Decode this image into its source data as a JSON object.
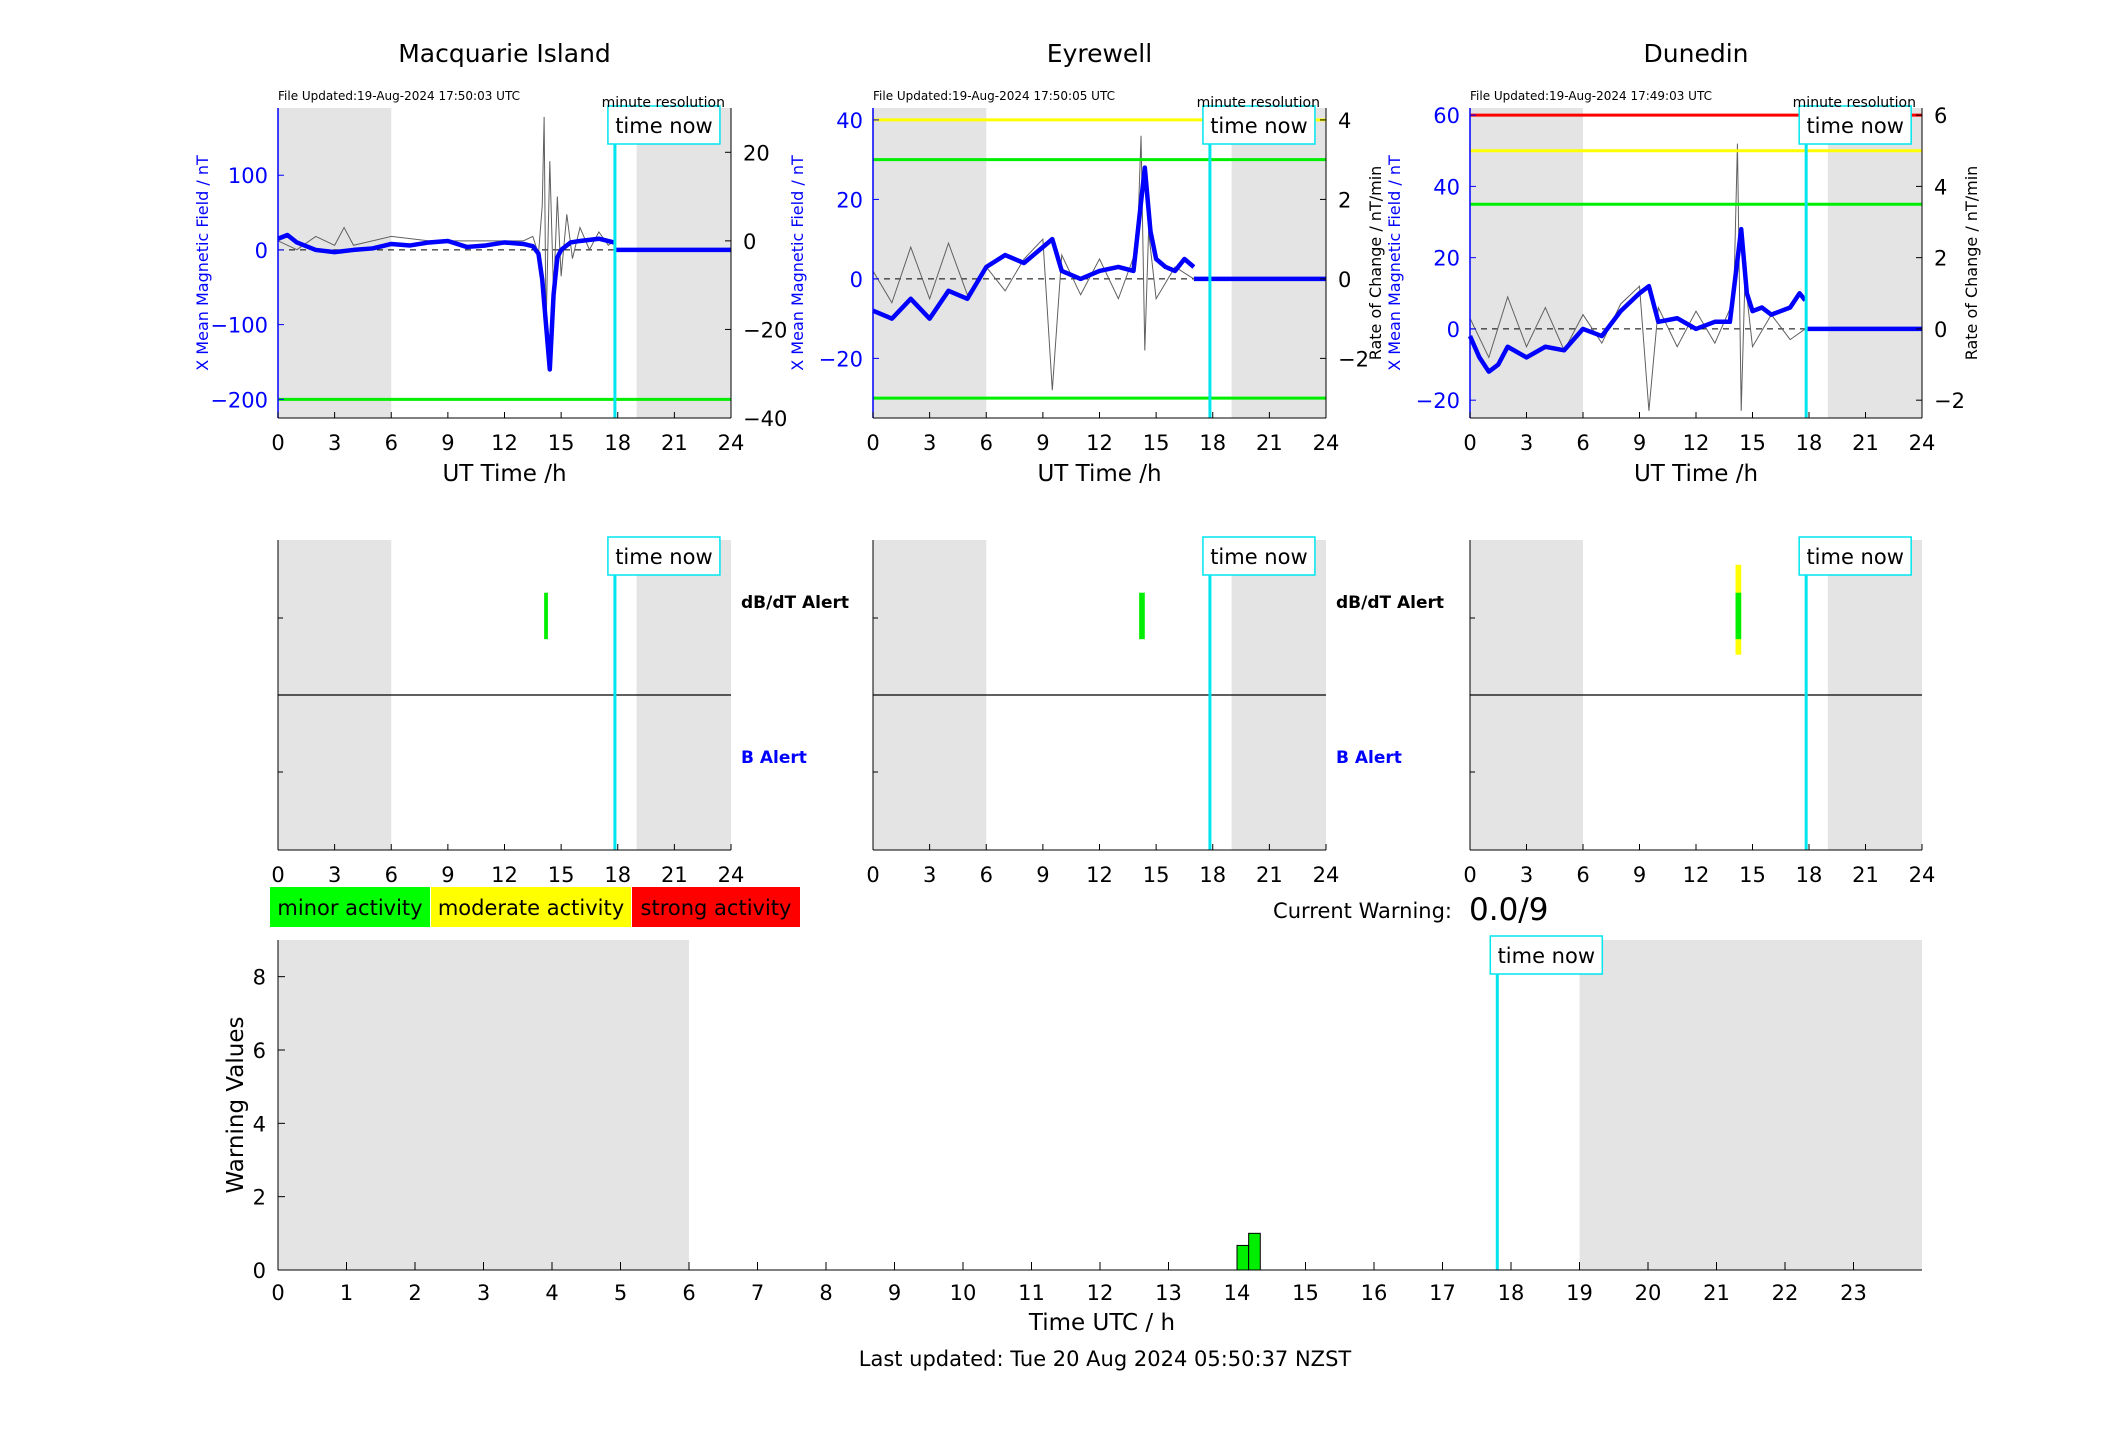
{
  "figure": {
    "last_updated": "Last updated: Tue 20 Aug 2024 05:50:37 NZST",
    "current_warning_label": "Current Warning:",
    "current_warning_value": "0.0/9"
  },
  "labels": {
    "time_now": "time now",
    "minute_resolution": "minute resolution",
    "ut_time": "UT Time /h",
    "left_ylabel": "X Mean Magnetic Field / nT",
    "right_ylabel": "Rate of Change / nT/min",
    "dbdt_alert": "dB/dT Alert",
    "b_alert": "B Alert",
    "time_utc": "Time UTC / h",
    "warning_values": "Warning Values"
  },
  "legend": [
    {
      "label": "minor activity",
      "color": "#00ff00"
    },
    {
      "label": "moderate activity",
      "color": "#ffff00"
    },
    {
      "label": "strong activity",
      "color": "#ff0000"
    }
  ],
  "colors": {
    "field": "#0000ff",
    "rate": "#606060",
    "night_shading": "#e4e4e4",
    "time_now": "#00e5ee",
    "threshold_green": "#00ee00",
    "threshold_yellow": "#ffff00",
    "threshold_red": "#ff0000"
  },
  "chart_data": [
    {
      "type": "line",
      "title": "Macquarie Island",
      "file_updated": "File Updated:19-Aug-2024 17:50:03 UTC",
      "xlabel": "UT Time /h",
      "ylabel": "X Mean Magnetic Field / nT",
      "y2label": "",
      "xlim": [
        0,
        24
      ],
      "xticks": [
        0,
        3,
        6,
        9,
        12,
        15,
        18,
        21,
        24
      ],
      "ylim": [
        -225,
        190
      ],
      "yticks": [
        -200,
        -100,
        0,
        100
      ],
      "y2lim": [
        -40,
        30
      ],
      "y2ticks": [
        -40,
        -20,
        0,
        20
      ],
      "night_shading": [
        [
          0,
          6
        ],
        [
          19,
          24
        ]
      ],
      "time_now": 17.85,
      "data_end": 17.83,
      "thresholds": [
        {
          "value": -200,
          "color": "green"
        }
      ],
      "series": [
        {
          "name": "",
          "axis": "left",
          "x": [
            0,
            0.5,
            1,
            1.5,
            2,
            3,
            4,
            5,
            6,
            7,
            8,
            9,
            10,
            11,
            12,
            13,
            13.5,
            13.8,
            14,
            14.2,
            14.4,
            14.6,
            14.8,
            15,
            15.5,
            16,
            17,
            17.8
          ],
          "y": [
            15,
            20,
            10,
            5,
            0,
            -3,
            0,
            2,
            8,
            6,
            10,
            12,
            4,
            6,
            10,
            8,
            5,
            -5,
            -40,
            -100,
            -160,
            -60,
            -10,
            0,
            10,
            12,
            15,
            10
          ]
        },
        {
          "name": "",
          "axis": "right",
          "x": [
            0,
            1,
            2,
            3,
            3.5,
            4,
            5,
            6,
            8,
            10,
            12,
            13,
            13.5,
            13.8,
            14,
            14.1,
            14.2,
            14.4,
            14.6,
            14.8,
            15,
            15.3,
            15.6,
            16,
            16.5,
            17,
            17.5,
            17.8
          ],
          "y": [
            0,
            -2,
            1,
            -1,
            3,
            -1,
            0,
            1,
            0,
            0,
            0,
            0,
            1,
            -3,
            8,
            28,
            -20,
            18,
            -12,
            10,
            -8,
            6,
            -4,
            3,
            -2,
            2,
            -1,
            0
          ]
        }
      ]
    },
    {
      "type": "line",
      "title": "Eyrewell",
      "file_updated": "File Updated:19-Aug-2024 17:50:05 UTC",
      "xlabel": "UT Time /h",
      "ylabel": "X Mean Magnetic Field / nT",
      "y2label": "Rate of Change / nT/min",
      "xlim": [
        0,
        24
      ],
      "xticks": [
        0,
        3,
        6,
        9,
        12,
        15,
        18,
        21,
        24
      ],
      "ylim": [
        -35,
        43
      ],
      "yticks": [
        -20,
        0,
        20,
        40
      ],
      "y2lim": [
        -3.5,
        4.3
      ],
      "y2ticks": [
        -2,
        0,
        2,
        4
      ],
      "night_shading": [
        [
          0,
          6
        ],
        [
          19,
          24
        ]
      ],
      "time_now": 17.85,
      "data_end": 17.0,
      "thresholds": [
        {
          "value": 40,
          "color": "yellow"
        },
        {
          "value": 30,
          "color": "green"
        },
        {
          "value": -30,
          "color": "green"
        }
      ],
      "series": [
        {
          "name": "",
          "axis": "left",
          "x": [
            0,
            1,
            2,
            3,
            4,
            5,
            6,
            7,
            8,
            9,
            9.5,
            10,
            11,
            12,
            13,
            13.8,
            14.1,
            14.4,
            14.7,
            15,
            15.5,
            16,
            16.5,
            17
          ],
          "y": [
            -8,
            -10,
            -5,
            -10,
            -3,
            -5,
            3,
            6,
            4,
            8,
            10,
            2,
            0,
            2,
            3,
            2,
            15,
            28,
            12,
            5,
            3,
            2,
            5,
            3
          ]
        },
        {
          "name": "",
          "axis": "right",
          "x": [
            0,
            1,
            2,
            3,
            4,
            5,
            6,
            7,
            8,
            9,
            9.5,
            10,
            11,
            12,
            13,
            14,
            14.2,
            14.4,
            14.6,
            15,
            16,
            17
          ],
          "y": [
            0.2,
            -0.6,
            0.8,
            -0.5,
            0.9,
            -0.4,
            0.3,
            -0.3,
            0.5,
            1.0,
            -2.8,
            0.6,
            -0.4,
            0.5,
            -0.5,
            0.8,
            3.6,
            -1.8,
            1.2,
            -0.5,
            0.3,
            0
          ]
        }
      ]
    },
    {
      "type": "line",
      "title": "Dunedin",
      "file_updated": "File Updated:19-Aug-2024 17:49:03 UTC",
      "xlabel": "UT Time /h",
      "ylabel": "X Mean Magnetic Field / nT",
      "y2label": "Rate of Change / nT/min",
      "xlim": [
        0,
        24
      ],
      "xticks": [
        0,
        3,
        6,
        9,
        12,
        15,
        18,
        21,
        24
      ],
      "ylim": [
        -25,
        62
      ],
      "yticks": [
        -20,
        0,
        20,
        40,
        60
      ],
      "y2lim": [
        -2.5,
        6.2
      ],
      "y2ticks": [
        -2,
        0,
        2,
        4,
        6
      ],
      "night_shading": [
        [
          0,
          6
        ],
        [
          19,
          24
        ]
      ],
      "time_now": 17.85,
      "data_end": 17.82,
      "thresholds": [
        {
          "value": 60,
          "color": "red"
        },
        {
          "value": 50,
          "color": "yellow"
        },
        {
          "value": 35,
          "color": "green"
        }
      ],
      "series": [
        {
          "name": "",
          "axis": "left",
          "x": [
            0,
            0.5,
            1,
            1.5,
            2,
            3,
            4,
            5,
            6,
            7,
            8,
            9,
            9.5,
            10,
            11,
            12,
            13,
            13.8,
            14.1,
            14.4,
            14.7,
            15,
            15.5,
            16,
            17,
            17.5,
            17.8
          ],
          "y": [
            -2,
            -8,
            -12,
            -10,
            -5,
            -8,
            -5,
            -6,
            0,
            -2,
            5,
            10,
            12,
            2,
            3,
            0,
            2,
            2,
            15,
            28,
            10,
            5,
            6,
            4,
            6,
            10,
            8
          ]
        },
        {
          "name": "",
          "axis": "right",
          "x": [
            0,
            1,
            2,
            3,
            4,
            5,
            6,
            7,
            8,
            9,
            9.5,
            10,
            11,
            12,
            13,
            14,
            14.2,
            14.4,
            14.6,
            15,
            16,
            17,
            17.8
          ],
          "y": [
            0.3,
            -0.8,
            0.9,
            -0.5,
            0.6,
            -0.6,
            0.4,
            -0.4,
            0.7,
            1.2,
            -2.3,
            0.6,
            -0.5,
            0.5,
            -0.4,
            0.8,
            5.2,
            -2.3,
            1.4,
            -0.5,
            0.4,
            -0.3,
            0
          ]
        }
      ]
    },
    {
      "type": "bar",
      "title": "",
      "xlabel": "Time UTC / h",
      "ylabel": "Warning Values",
      "xlim": [
        0,
        24
      ],
      "xticks": [
        0,
        1,
        2,
        3,
        4,
        5,
        6,
        7,
        8,
        9,
        10,
        11,
        12,
        13,
        14,
        15,
        16,
        17,
        18,
        19,
        20,
        21,
        22,
        23
      ],
      "ylim": [
        0,
        9
      ],
      "yticks": [
        0,
        2,
        4,
        6,
        8
      ],
      "night_shading": [
        [
          0,
          6
        ],
        [
          19,
          24
        ]
      ],
      "time_now": 17.8,
      "bars": [
        {
          "x": 14.0,
          "width": 0.17,
          "value": 0.67,
          "color": "green"
        },
        {
          "x": 14.17,
          "width": 0.17,
          "value": 1.0,
          "color": "green"
        }
      ]
    }
  ],
  "alert_panels": [
    {
      "station": "Macquarie Island",
      "xticks": [
        0,
        3,
        6,
        9,
        12,
        15,
        18,
        21,
        24
      ],
      "night_shading": [
        [
          0,
          6
        ],
        [
          19,
          24
        ]
      ],
      "time_now": 17.85,
      "dbdt_alerts": [
        {
          "start": 14.1,
          "end": 14.3,
          "bottom_frac": 0.36,
          "top_frac": 0.66,
          "color": "green"
        }
      ],
      "b_alerts": []
    },
    {
      "station": "Eyrewell",
      "xticks": [
        0,
        3,
        6,
        9,
        12,
        15,
        18,
        21,
        24
      ],
      "night_shading": [
        [
          0,
          6
        ],
        [
          19,
          24
        ]
      ],
      "time_now": 17.85,
      "dbdt_alerts": [
        {
          "start": 14.1,
          "end": 14.4,
          "bottom_frac": 0.36,
          "top_frac": 0.66,
          "color": "green"
        }
      ],
      "b_alerts": []
    },
    {
      "station": "Dunedin",
      "xticks": [
        0,
        3,
        6,
        9,
        12,
        15,
        18,
        21,
        24
      ],
      "night_shading": [
        [
          0,
          6
        ],
        [
          19,
          24
        ]
      ],
      "time_now": 17.85,
      "dbdt_alerts": [
        {
          "start": 14.1,
          "end": 14.4,
          "bottom_frac": 0.26,
          "top_frac": 0.84,
          "color": "yellow"
        },
        {
          "start": 14.1,
          "end": 14.4,
          "bottom_frac": 0.36,
          "top_frac": 0.66,
          "color": "green"
        }
      ],
      "b_alerts": []
    }
  ]
}
